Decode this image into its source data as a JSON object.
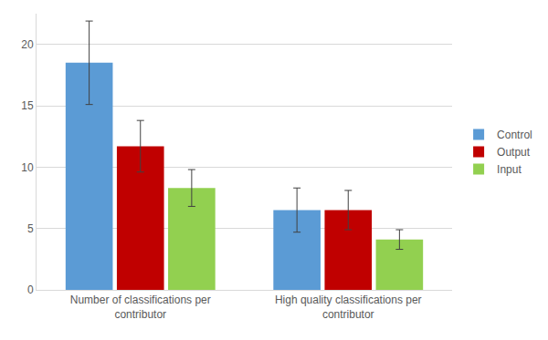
{
  "chart_data": {
    "type": "bar",
    "categories": [
      "Number of classifications per contributor",
      "High quality classifications per contributor"
    ],
    "series": [
      {
        "name": "Control",
        "color": "#5b9bd5",
        "values": [
          18.5,
          6.5
        ],
        "errors": [
          3.4,
          1.8
        ]
      },
      {
        "name": "Output",
        "color": "#c00000",
        "values": [
          11.7,
          6.5
        ],
        "errors": [
          2.1,
          1.6
        ]
      },
      {
        "name": "Input",
        "color": "#92d050",
        "values": [
          8.3,
          4.1
        ],
        "errors": [
          1.5,
          0.8
        ]
      }
    ],
    "ylim": [
      0,
      22.5
    ],
    "yticks": [
      0,
      5,
      10,
      15,
      20
    ],
    "grid": true,
    "legend": "right"
  }
}
